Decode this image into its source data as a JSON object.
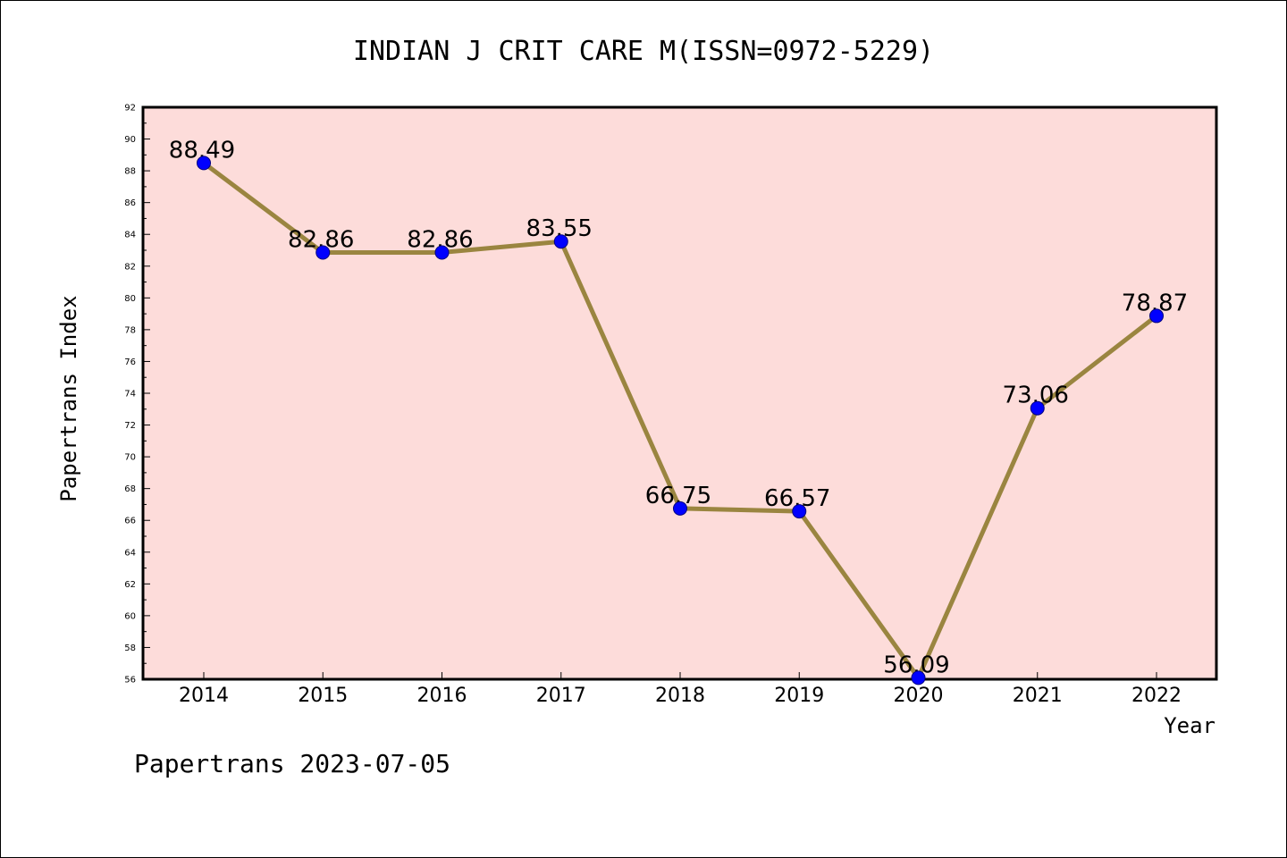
{
  "chart_data": {
    "type": "line",
    "title": "INDIAN J CRIT CARE M(ISSN=0972-5229)",
    "xlabel": "Year",
    "ylabel": "Papertrans Index",
    "footer": "Papertrans 2023-07-05",
    "categories": [
      "2014",
      "2015",
      "2016",
      "2017",
      "2018",
      "2019",
      "2020",
      "2021",
      "2022"
    ],
    "values": [
      88.49,
      82.86,
      82.86,
      83.55,
      66.75,
      66.57,
      56.09,
      73.06,
      78.87
    ],
    "value_labels": [
      "88.49",
      "82.86",
      "82.86",
      "83.55",
      "66.75",
      "66.57",
      "56.09",
      "73.06",
      "78.87"
    ],
    "ylim": [
      56,
      92
    ],
    "yticks": [
      "56",
      "58",
      "60",
      "62",
      "64",
      "66",
      "68",
      "70",
      "72",
      "74",
      "76",
      "78",
      "80",
      "82",
      "84",
      "86",
      "88",
      "90",
      "92"
    ],
    "grid": false,
    "colors": {
      "plot_background": "#fddcda",
      "line": "#9a8540",
      "marker": "#0000ff",
      "axis": "#000000"
    }
  }
}
